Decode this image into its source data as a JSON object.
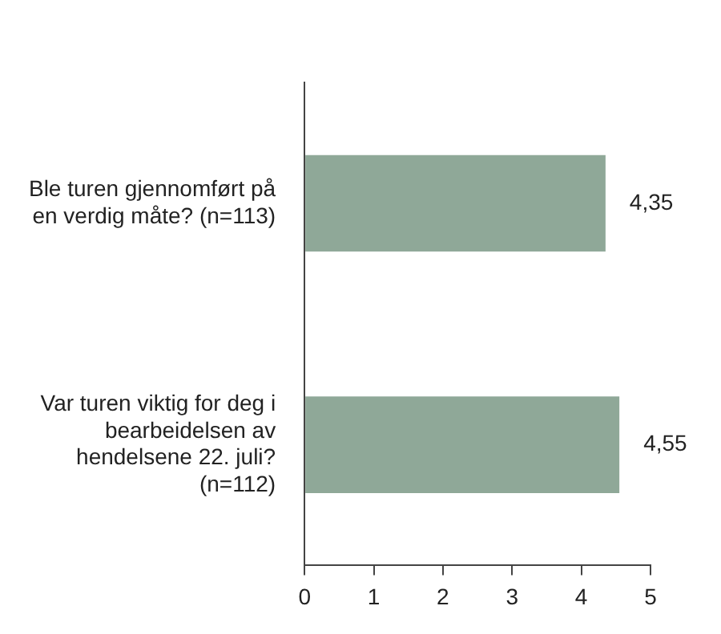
{
  "chart_data": {
    "type": "bar",
    "orientation": "horizontal",
    "categories": [
      "Ble turen gjennomført på en verdig måte? (n=113)",
      "Var turen viktig for deg i bearbeidelsen av hendelsene 22. juli? (n=112)"
    ],
    "values": [
      4.35,
      4.55
    ],
    "color": "#8fa898",
    "value_labels": [
      "4,35",
      "4,55"
    ],
    "xlim": [
      0,
      5
    ],
    "xticks": [
      0,
      1,
      2,
      3,
      4,
      5
    ],
    "grid": false,
    "legend": false
  }
}
